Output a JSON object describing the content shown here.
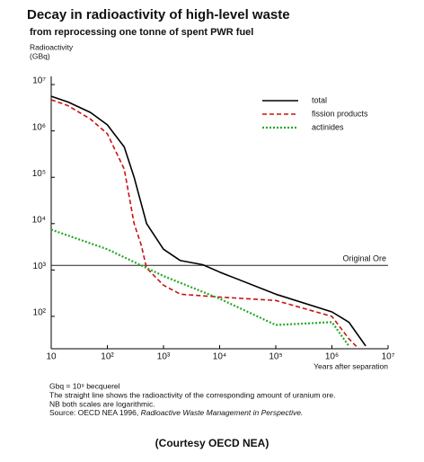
{
  "chart_data": {
    "type": "line",
    "title": "Decay in radioactivity of high-level waste",
    "subtitle": "from reprocessing one tonne of spent PWR fuel",
    "y_label": [
      "Radioactivity",
      "(GBq)"
    ],
    "x_label": "Years after separation",
    "log_x": true,
    "log_y": true,
    "legend": "upper right",
    "xlim": [
      10,
      10000000
    ],
    "ylim": [
      20,
      15000000
    ],
    "xticks": [
      10,
      {
        "value": 100,
        "label": "10²"
      },
      {
        "value": 1000,
        "label": "10³"
      },
      {
        "value": 10000,
        "label": "10⁴"
      },
      {
        "value": 100000,
        "label": "10⁵"
      },
      {
        "value": 1000000,
        "label": "10⁶"
      },
      {
        "value": 10000000,
        "label": "10⁷"
      }
    ],
    "yticks": [
      {
        "value": 100,
        "label": "10²"
      },
      {
        "value": 1000,
        "label": "10³"
      },
      {
        "value": 10000,
        "label": "10⁴"
      },
      {
        "value": 100000,
        "label": "10⁵"
      },
      {
        "value": 1000000,
        "label": "10⁶"
      },
      {
        "value": 10000000,
        "label": "10⁷"
      }
    ],
    "reference_line": {
      "value": 1260,
      "label": "Original Ore",
      "color": "#222222"
    },
    "series": [
      {
        "name": "total",
        "color": "#000000",
        "dash": "solid",
        "x": [
          10,
          20,
          50,
          100,
          200,
          300,
          500,
          1000,
          2000,
          5000,
          10000,
          100000,
          1000000,
          2000000,
          4000000
        ],
        "values": [
          5600000,
          4200000,
          2500000,
          1350000,
          450000,
          100000,
          10000,
          2800,
          1600,
          1300,
          900,
          300,
          125,
          75,
          23
        ]
      },
      {
        "name": "fission products",
        "color": "#cc1111",
        "dash": "dashed",
        "x": [
          10,
          20,
          50,
          100,
          200,
          300,
          400,
          500,
          1000,
          2000,
          10000,
          100000,
          1000000,
          2000000,
          3000000
        ],
        "values": [
          4700000,
          3500000,
          1800000,
          870000,
          150000,
          10000,
          3500,
          1100,
          470,
          300,
          260,
          220,
          100,
          33,
          20
        ]
      },
      {
        "name": "actinides",
        "color": "#22aa22",
        "dash": "dotted",
        "x": [
          10,
          100,
          1000,
          10000,
          100000,
          1000000,
          2000000
        ],
        "values": [
          7400,
          2800,
          740,
          240,
          65,
          75,
          23
        ]
      }
    ],
    "notes": [
      "Gbq = 10⁹ becquerel",
      "The straight line shows the radioactivity of the corresponding amount of uranium ore.",
      "NB both scales are logarithmic."
    ],
    "source": {
      "prefix": "Source: OECD NEA 1996, ",
      "title": "Radioactive Waste Management in Perspective."
    },
    "credit": "(Courtesy OECD NEA)"
  }
}
